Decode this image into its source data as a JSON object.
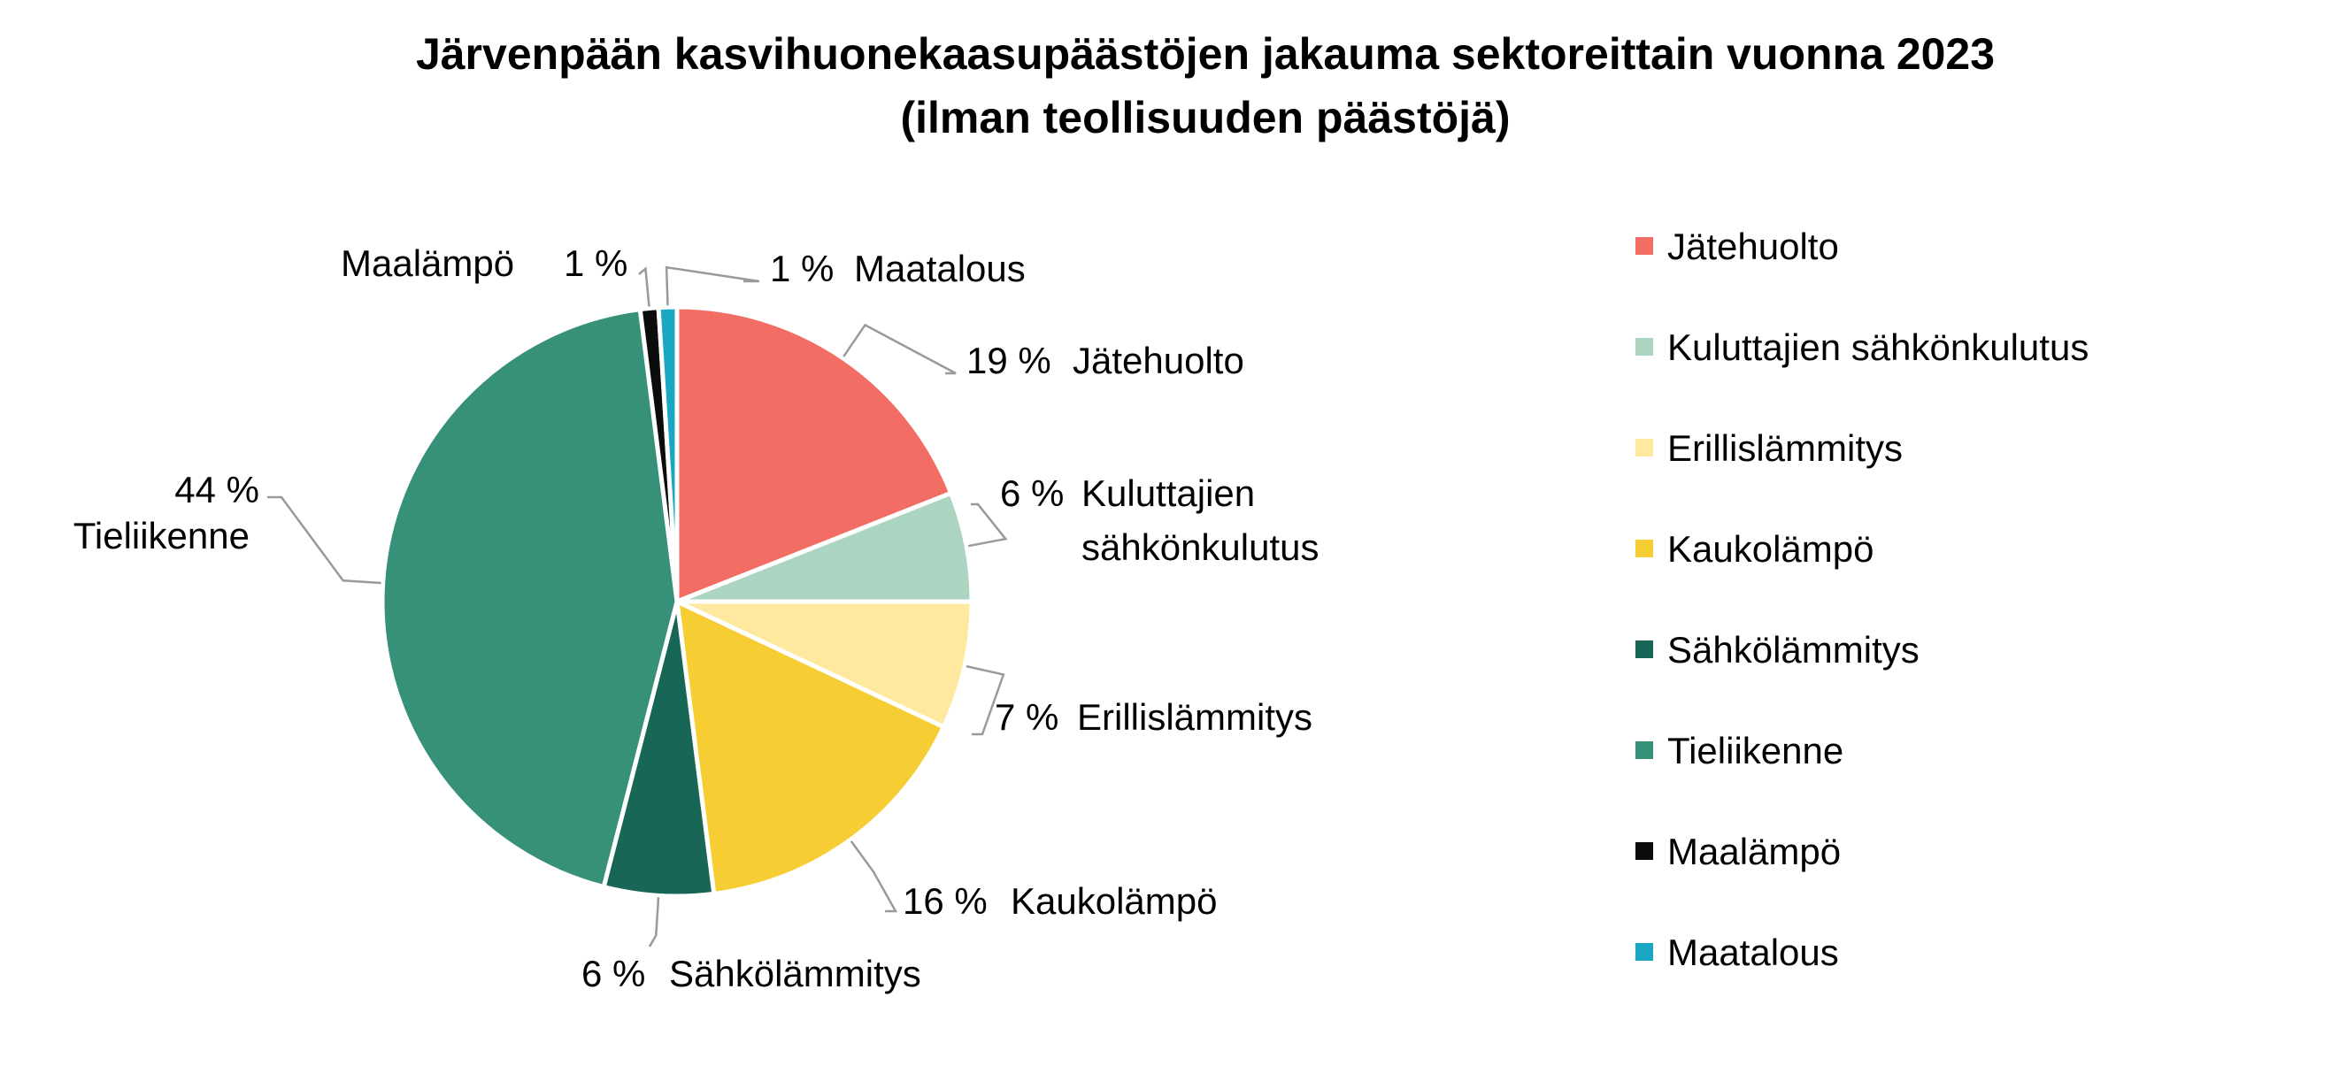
{
  "chart_data": {
    "type": "pie",
    "title": "Järvenpään kasvihuonekaasupäästöjen jakauma sektoreittain vuonna 2023",
    "subtitle": "(ilman teollisuuden päästöjä)",
    "value_unit": "%",
    "legend_position": "right",
    "slices": [
      {
        "name": "Jätehuolto",
        "value": 19,
        "label": "19 %",
        "color": "#f26d63"
      },
      {
        "name": "Kuluttajien sähkönkulutus",
        "value": 6,
        "label": "6 %",
        "color": "#acd5c1"
      },
      {
        "name": "Erillislämmitys",
        "value": 7,
        "label": "7 %",
        "color": "#fee99f"
      },
      {
        "name": "Kaukolämpö",
        "value": 16,
        "label": "16 %",
        "color": "#f6cd32"
      },
      {
        "name": "Sähkölämmitys",
        "value": 6,
        "label": "6 %",
        "color": "#186655"
      },
      {
        "name": "Tieliikenne",
        "value": 44,
        "label": "44 %",
        "color": "#369178"
      },
      {
        "name": "Maalämpö",
        "value": 1,
        "label": "1 %",
        "color": "#0c0c0c"
      },
      {
        "name": "Maatalous",
        "value": 1,
        "label": "1 %",
        "color": "#1aa7c2"
      }
    ]
  }
}
